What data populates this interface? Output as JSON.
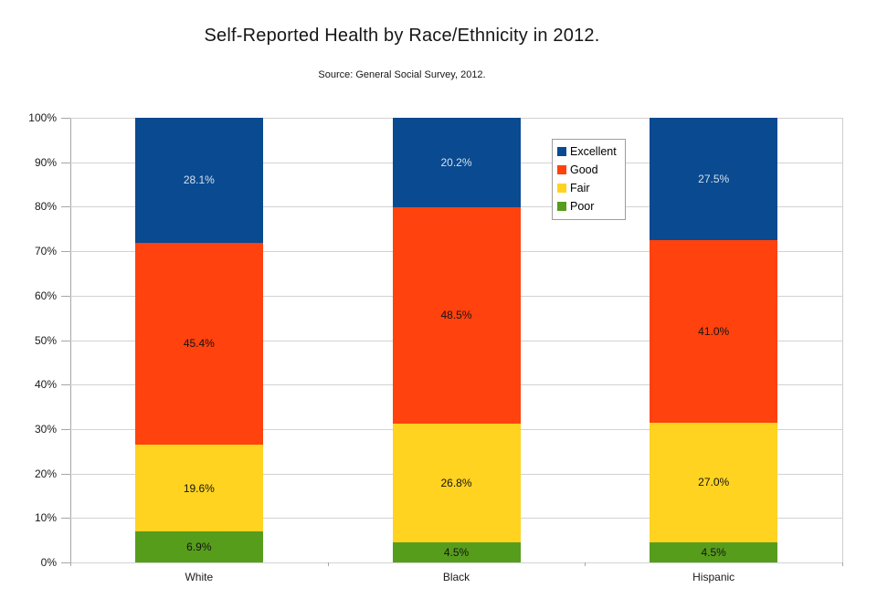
{
  "chart_data": {
    "type": "bar",
    "stacked": true,
    "title": "Self-Reported Health by Race/Ethnicity in 2012.",
    "subtitle": "Source: General Social Survey, 2012.",
    "categories": [
      "White",
      "Black",
      "Hispanic"
    ],
    "series": [
      {
        "name": "Excellent",
        "color": "#0a4a90",
        "values": [
          28.1,
          20.2,
          27.5
        ],
        "data_labels": [
          "28.1%",
          "20.2%",
          "27.5%"
        ],
        "label_color": "#d3e0ef"
      },
      {
        "name": "Good",
        "color": "#ff420e",
        "values": [
          45.4,
          48.5,
          41.0
        ],
        "data_labels": [
          "45.4%",
          "48.5%",
          "41.0%"
        ],
        "label_color": "#141414"
      },
      {
        "name": "Fair",
        "color": "#ffd320",
        "values": [
          19.6,
          26.8,
          27.0
        ],
        "data_labels": [
          "19.6%",
          "26.8%",
          "27.0%"
        ],
        "label_color": "#141414"
      },
      {
        "name": "Poor",
        "color": "#579d1c",
        "values": [
          6.9,
          4.5,
          4.5
        ],
        "data_labels": [
          "6.9%",
          "4.5%",
          "4.5%"
        ],
        "label_color": "#141414"
      }
    ],
    "stack_order_bottom_to_top": [
      "Poor",
      "Fair",
      "Good",
      "Excellent"
    ],
    "ylim": [
      0,
      100
    ],
    "ytick_step": 10,
    "ytick_labels": [
      "0%",
      "10%",
      "20%",
      "30%",
      "40%",
      "50%",
      "60%",
      "70%",
      "80%",
      "90%",
      "100%"
    ],
    "grid": true,
    "legend": {
      "position": "inside-top-center",
      "entries": [
        "Excellent",
        "Good",
        "Fair",
        "Poor"
      ]
    }
  }
}
